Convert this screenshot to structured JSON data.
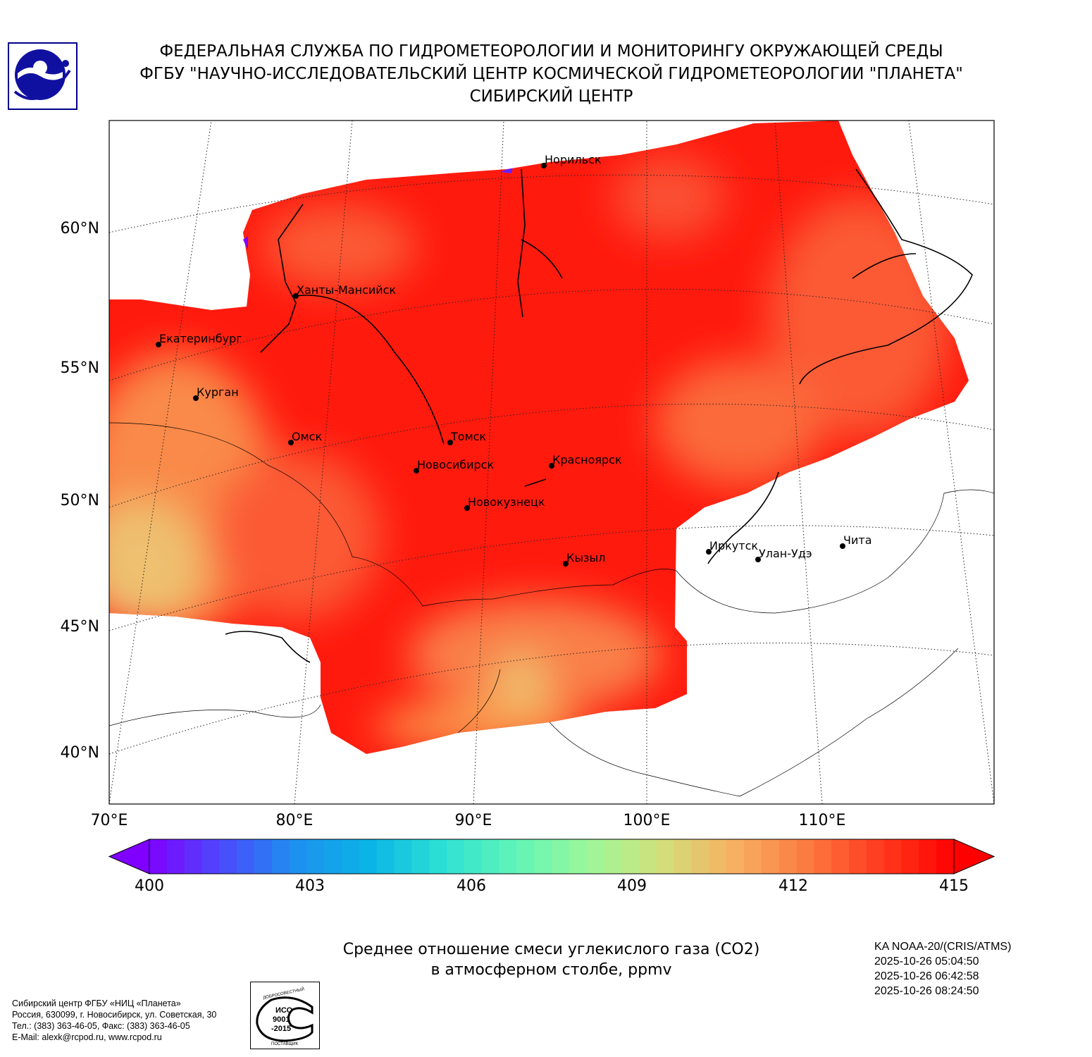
{
  "header": {
    "line1": "ФЕДЕРАЛЬНАЯ СЛУЖБА ПО ГИДРОМЕТЕОРОЛОГИИ И МОНИТОРИНГУ ОКРУЖАЮЩЕЙ СРЕДЫ",
    "line2": "ФГБУ \"НАУЧНО-ИССЛЕДОВАТЕЛЬСКИЙ ЦЕНТР КОСМИЧЕСКОЙ ГИДРОМЕТЕОРОЛОГИИ \"ПЛАНЕТА\"",
    "line3": "СИБИРСКИЙ ЦЕНТР"
  },
  "map": {
    "lat_labels": [
      "60°N",
      "55°N",
      "50°N",
      "45°N",
      "40°N"
    ],
    "lon_labels": [
      "70°E",
      "80°E",
      "90°E",
      "100°E",
      "110°E"
    ],
    "cities": [
      "Норильск",
      "Ханты-Мансийск",
      "Екатеринбург",
      "Курган",
      "Омск",
      "Томск",
      "Новосибирск",
      "Красноярск",
      "Новокузнецк",
      "Кызыл",
      "Иркутск",
      "Улан-Удэ",
      "Чита"
    ]
  },
  "colorbar": {
    "ticks": [
      "400",
      "403",
      "406",
      "409",
      "412",
      "415"
    ],
    "min": 400,
    "max": 415,
    "colors": [
      "#7f00ff",
      "#4b4bfc",
      "#1e90f0",
      "#0ab4e6",
      "#2ce0d4",
      "#60f5b8",
      "#9cf79a",
      "#d2e07a",
      "#f7b062",
      "#fb7a40",
      "#ff3a1e",
      "#ff0000"
    ]
  },
  "caption": {
    "line1": "Среднее отношение смеси углекислого газа (CO2)",
    "line2": "в атмосферном столбе, ppmv"
  },
  "satellite": {
    "instrument": "KA NOAA-20/(CRIS/ATMS)",
    "times": [
      "2025-10-26 05:04:50",
      "2025-10-26 06:42:58",
      "2025-10-26 08:24:50"
    ]
  },
  "footer": {
    "lines": [
      "Сибирский центр ФГБУ «НИЦ «Планета»",
      "Россия, 630099, г. Новосибирск, ул. Советская, 30",
      "Тел.: (383) 363-46-05, Факс: (383) 363-46-05",
      "E-Mail: alexk@rcpod.ru, www.rcpod.ru"
    ],
    "iso_stamp": "ДОБРОСОВЕСТНЫЙ ИСО 9001-2015 ПОСТАВЩИК"
  }
}
